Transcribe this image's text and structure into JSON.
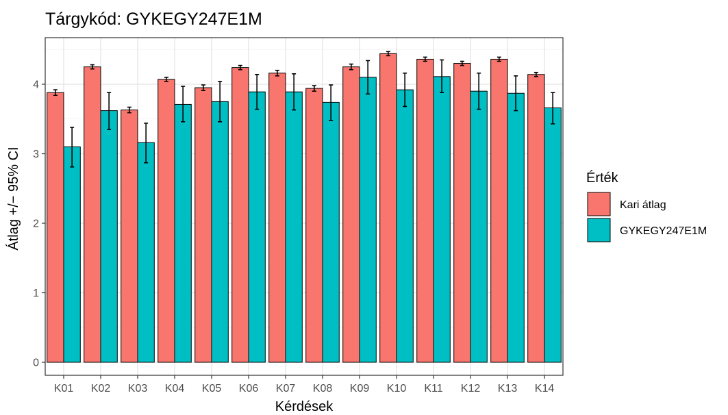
{
  "title": "Tárgykód:  GYKEGY247E1M",
  "chart_data": {
    "type": "bar",
    "title": "Tárgykód:  GYKEGY247E1M",
    "xlabel": "Kérdések",
    "ylabel": "Átlag +/− 95% CI",
    "ylim": [
      0,
      4.6
    ],
    "yticks": [
      0,
      1,
      2,
      3,
      4
    ],
    "grid": true,
    "legend_title": "Érték",
    "legend_position": "right",
    "categories": [
      "K01",
      "K02",
      "K03",
      "K04",
      "K05",
      "K06",
      "K07",
      "K08",
      "K09",
      "K10",
      "K11",
      "K12",
      "K13",
      "K14"
    ],
    "series": [
      {
        "name": "Kari átlag",
        "color": "#F8766D",
        "values": [
          3.88,
          4.25,
          3.63,
          4.07,
          3.95,
          4.24,
          4.16,
          3.94,
          4.25,
          4.44,
          4.36,
          4.3,
          4.36,
          4.14
        ],
        "ci_low": [
          3.84,
          4.22,
          3.59,
          4.04,
          3.91,
          4.21,
          4.12,
          3.9,
          4.21,
          4.41,
          4.33,
          4.27,
          4.33,
          4.11
        ],
        "ci_high": [
          3.92,
          4.28,
          3.67,
          4.1,
          3.99,
          4.27,
          4.2,
          3.98,
          4.29,
          4.47,
          4.39,
          4.33,
          4.39,
          4.17
        ]
      },
      {
        "name": "GYKEGY247E1M",
        "color": "#00BFC4",
        "values": [
          3.1,
          3.62,
          3.16,
          3.71,
          3.75,
          3.89,
          3.89,
          3.74,
          4.1,
          3.92,
          4.11,
          3.9,
          3.87,
          3.66
        ],
        "ci_low": [
          2.81,
          3.35,
          2.87,
          3.46,
          3.46,
          3.64,
          3.63,
          3.48,
          3.86,
          3.68,
          3.88,
          3.64,
          3.62,
          3.43
        ],
        "ci_high": [
          3.38,
          3.88,
          3.44,
          3.97,
          4.04,
          4.14,
          4.15,
          3.99,
          4.34,
          4.16,
          4.35,
          4.16,
          4.12,
          3.88
        ]
      }
    ]
  }
}
